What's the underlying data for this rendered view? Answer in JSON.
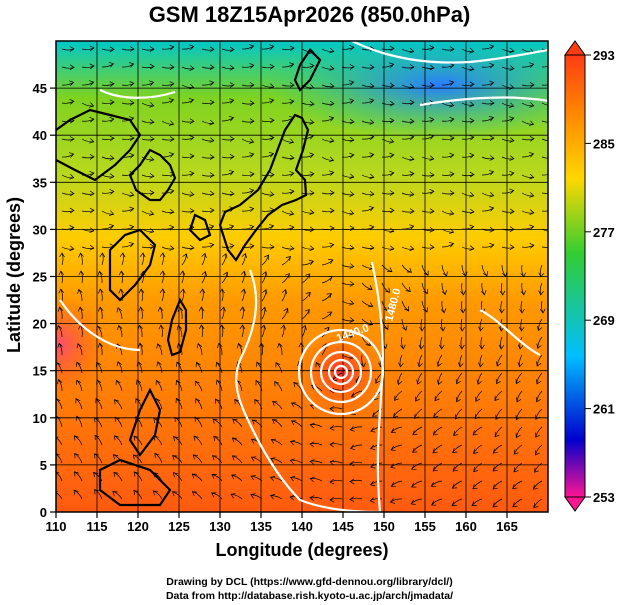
{
  "title": "GSM 18Z15Apr2026 (850.0hPa)",
  "xaxis": {
    "label": "Longitude (degrees)",
    "ticks": [
      "110",
      "115",
      "120",
      "125",
      "130",
      "135",
      "140",
      "145",
      "150",
      "155",
      "160",
      "165"
    ],
    "range": [
      110,
      170
    ]
  },
  "yaxis": {
    "label": "Latitude  (degrees)",
    "ticks": [
      "0",
      "5",
      "10",
      "15",
      "20",
      "25",
      "30",
      "35",
      "40",
      "45"
    ],
    "range": [
      0,
      50
    ]
  },
  "colorbar": {
    "labels": [
      "293",
      "285",
      "277",
      "269",
      "261",
      "253"
    ],
    "range": [
      253,
      293
    ],
    "colors": [
      "#ff1493",
      "#0000cd",
      "#00bfff",
      "#32cd32",
      "#ffd700",
      "#ff8c00",
      "#ff3c14"
    ]
  },
  "contour_labels": [
    "1440.0",
    "1440.0",
    "1480.0"
  ],
  "credits": [
    "Drawing by DCL (https://www.gfd-dennou.org/library/dcl/)",
    "Data from http://database.rish.kyoto-u.ac.jp/arch/jmadata/"
  ]
}
